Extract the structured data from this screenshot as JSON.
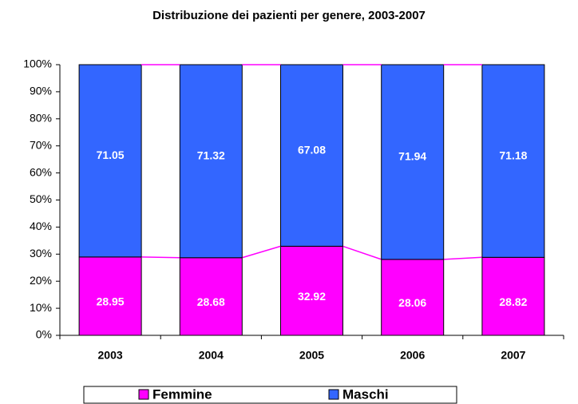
{
  "chart_data": {
    "type": "stacked_bar",
    "title": "Distribuzione dei pazienti per genere, 2003-2007",
    "categories": [
      "2003",
      "2004",
      "2005",
      "2006",
      "2007"
    ],
    "series": [
      {
        "name": "Femmine",
        "color": "#ff00ff",
        "values": [
          28.95,
          28.68,
          32.92,
          28.06,
          28.82
        ]
      },
      {
        "name": "Maschi",
        "color": "#3366ff",
        "values": [
          71.05,
          71.32,
          67.08,
          71.94,
          71.18
        ]
      }
    ],
    "ylim": [
      0,
      100
    ],
    "yticks": [
      {
        "value": 0,
        "label": "0%"
      },
      {
        "value": 10,
        "label": "10%"
      },
      {
        "value": 20,
        "label": "20%"
      },
      {
        "value": 30,
        "label": "30%"
      },
      {
        "value": 40,
        "label": "40%"
      },
      {
        "value": 50,
        "label": "50%"
      },
      {
        "value": 60,
        "label": "60%"
      },
      {
        "value": 70,
        "label": "70%"
      },
      {
        "value": 80,
        "label": "80%"
      },
      {
        "value": 90,
        "label": "90%"
      },
      {
        "value": 100,
        "label": "100%"
      }
    ],
    "series_lines": true,
    "legend": "bottom"
  }
}
